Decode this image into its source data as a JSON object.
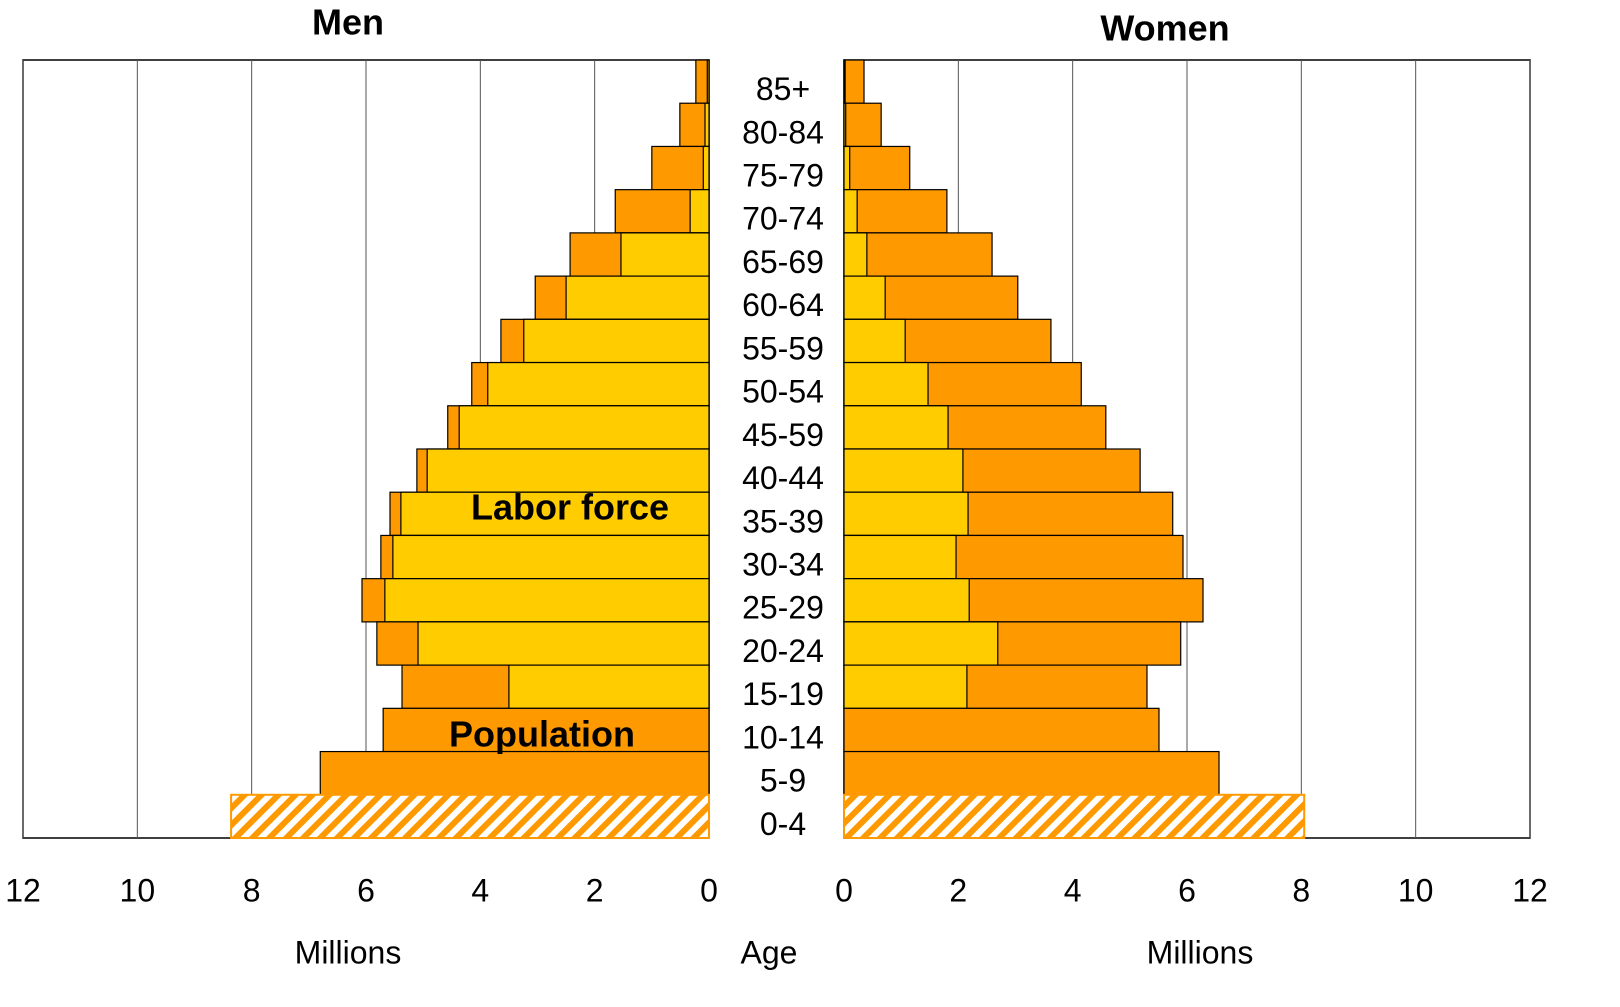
{
  "chart_data": {
    "type": "population_pyramid",
    "category_label": "Age",
    "categories": [
      "85+",
      "80-84",
      "75-79",
      "70-74",
      "65-69",
      "60-64",
      "55-59",
      "50-54",
      "45-59",
      "40-44",
      "35-39",
      "30-34",
      "25-29",
      "20-24",
      "15-19",
      "10-14",
      "5-9",
      "0-4"
    ],
    "hatched_categories": [
      "0-4"
    ],
    "grid": true,
    "left": {
      "title": "Men",
      "xlabel": "Millions",
      "xlim": [
        0,
        12
      ],
      "xticks": [
        0,
        2,
        4,
        6,
        8,
        10,
        12
      ],
      "series": [
        {
          "name": "Population",
          "color": "#ff9900",
          "values": [
            0.23,
            0.51,
            1.0,
            1.64,
            2.43,
            3.04,
            3.64,
            4.15,
            4.57,
            5.11,
            5.58,
            5.74,
            6.07,
            5.81,
            5.37,
            5.7,
            6.8,
            8.36
          ]
        },
        {
          "name": "Labor force",
          "color": "#ffcc00",
          "values": [
            0.03,
            0.07,
            0.1,
            0.33,
            1.54,
            2.5,
            3.24,
            3.87,
            4.37,
            4.93,
            5.39,
            5.53,
            5.67,
            5.09,
            3.5,
            0,
            0,
            0
          ]
        }
      ]
    },
    "right": {
      "title": "Women",
      "xlabel": "Millions",
      "xlim": [
        0,
        12
      ],
      "xticks": [
        0,
        2,
        4,
        6,
        8,
        10,
        12
      ],
      "series": [
        {
          "name": "Population",
          "color": "#ff9900",
          "values": [
            0.35,
            0.65,
            1.15,
            1.8,
            2.59,
            3.04,
            3.62,
            4.15,
            4.58,
            5.18,
            5.75,
            5.93,
            6.28,
            5.89,
            5.3,
            5.51,
            6.56,
            8.05
          ]
        },
        {
          "name": "Labor force",
          "color": "#ffcc00",
          "values": [
            0.02,
            0.03,
            0.1,
            0.23,
            0.4,
            0.72,
            1.07,
            1.47,
            1.82,
            2.08,
            2.17,
            1.96,
            2.19,
            2.69,
            2.15,
            0,
            0,
            0
          ]
        }
      ]
    }
  }
}
